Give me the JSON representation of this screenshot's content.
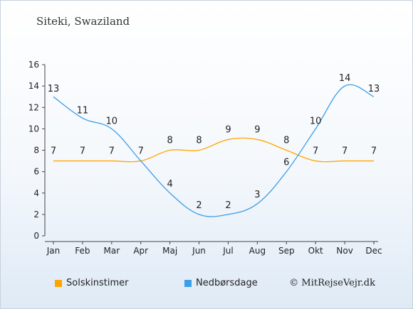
{
  "header": {
    "title": "Siteki, Swaziland"
  },
  "footer": {
    "credit": "© MitRejseVejr.dk"
  },
  "chart_data": {
    "type": "line",
    "title": "Siteki, Swaziland",
    "categories": [
      "Jan",
      "Feb",
      "Mar",
      "Apr",
      "Maj",
      "Jun",
      "Jul",
      "Aug",
      "Sep",
      "Okt",
      "Nov",
      "Dec"
    ],
    "ylim": [
      0,
      16
    ],
    "yticks": [
      0,
      2,
      4,
      6,
      8,
      10,
      12,
      14,
      16
    ],
    "grid": false,
    "legend": "bottom-left",
    "series": [
      {
        "name": "Solskinstimer",
        "color": "#ffa500",
        "values": [
          7,
          7,
          7,
          7,
          8,
          8,
          9,
          9,
          8,
          7,
          7,
          7
        ]
      },
      {
        "name": "Nedbørsdage",
        "color": "#3a9ee8",
        "values": [
          13,
          11,
          10,
          7,
          4,
          2,
          2,
          3,
          6,
          10,
          14,
          13
        ]
      }
    ]
  }
}
